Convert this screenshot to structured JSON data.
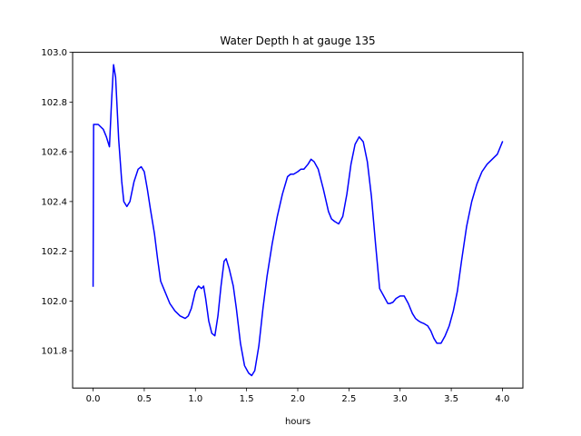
{
  "chart_data": {
    "type": "line",
    "title": "Water Depth h at gauge 135",
    "xlabel": "hours",
    "ylabel": "",
    "xlim": [
      -0.2,
      4.2
    ],
    "ylim": [
      101.65,
      103.0
    ],
    "xticks": [
      0.0,
      0.5,
      1.0,
      1.5,
      2.0,
      2.5,
      3.0,
      3.5,
      4.0
    ],
    "xtick_labels": [
      "0.0",
      "0.5",
      "1.0",
      "1.5",
      "2.0",
      "2.5",
      "3.0",
      "3.5",
      "4.0"
    ],
    "yticks": [
      101.8,
      102.0,
      102.2,
      102.4,
      102.6,
      102.8,
      103.0
    ],
    "ytick_labels": [
      "101.8",
      "102.0",
      "102.2",
      "102.4",
      "102.6",
      "102.8",
      "103.0"
    ],
    "grid": false,
    "legend": "none",
    "series": [
      {
        "color": "#0000ff",
        "x": [
          0.0,
          0.005,
          0.01,
          0.05,
          0.1,
          0.13,
          0.16,
          0.18,
          0.2,
          0.22,
          0.25,
          0.28,
          0.3,
          0.33,
          0.36,
          0.4,
          0.44,
          0.47,
          0.5,
          0.53,
          0.56,
          0.6,
          0.63,
          0.66,
          0.7,
          0.75,
          0.8,
          0.85,
          0.9,
          0.93,
          0.96,
          1.0,
          1.03,
          1.06,
          1.08,
          1.1,
          1.13,
          1.16,
          1.19,
          1.22,
          1.25,
          1.28,
          1.3,
          1.33,
          1.37,
          1.4,
          1.44,
          1.48,
          1.52,
          1.55,
          1.58,
          1.62,
          1.66,
          1.7,
          1.75,
          1.8,
          1.85,
          1.9,
          1.93,
          1.96,
          2.0,
          2.03,
          2.06,
          2.1,
          2.13,
          2.16,
          2.2,
          2.25,
          2.3,
          2.33,
          2.36,
          2.4,
          2.44,
          2.48,
          2.52,
          2.56,
          2.6,
          2.64,
          2.68,
          2.72,
          2.76,
          2.8,
          2.84,
          2.88,
          2.9,
          2.93,
          2.96,
          3.0,
          3.04,
          3.08,
          3.12,
          3.15,
          3.18,
          3.2,
          3.23,
          3.27,
          3.3,
          3.33,
          3.36,
          3.4,
          3.44,
          3.48,
          3.52,
          3.56,
          3.6,
          3.65,
          3.7,
          3.75,
          3.8,
          3.85,
          3.9,
          3.95,
          4.0
        ],
        "y": [
          102.06,
          102.71,
          102.71,
          102.71,
          102.69,
          102.66,
          102.62,
          102.8,
          102.95,
          102.9,
          102.65,
          102.48,
          102.4,
          102.38,
          102.4,
          102.48,
          102.53,
          102.54,
          102.52,
          102.45,
          102.37,
          102.27,
          102.17,
          102.08,
          102.04,
          101.99,
          101.96,
          101.94,
          101.93,
          101.94,
          101.97,
          102.04,
          102.06,
          102.05,
          102.06,
          102.01,
          101.92,
          101.87,
          101.86,
          101.94,
          102.06,
          102.16,
          102.17,
          102.13,
          102.06,
          101.97,
          101.83,
          101.74,
          101.71,
          101.7,
          101.72,
          101.82,
          101.97,
          102.1,
          102.23,
          102.34,
          102.43,
          102.5,
          102.51,
          102.51,
          102.52,
          102.53,
          102.53,
          102.55,
          102.57,
          102.56,
          102.53,
          102.45,
          102.36,
          102.33,
          102.32,
          102.31,
          102.34,
          102.43,
          102.55,
          102.63,
          102.66,
          102.64,
          102.56,
          102.42,
          102.23,
          102.05,
          102.02,
          101.99,
          101.99,
          101.995,
          102.01,
          102.02,
          102.02,
          101.99,
          101.95,
          101.93,
          101.92,
          101.915,
          101.91,
          101.9,
          101.88,
          101.85,
          101.83,
          101.83,
          101.86,
          101.9,
          101.96,
          102.04,
          102.16,
          102.3,
          102.4,
          102.47,
          102.52,
          102.55,
          102.57,
          102.59,
          102.64
        ]
      }
    ]
  }
}
